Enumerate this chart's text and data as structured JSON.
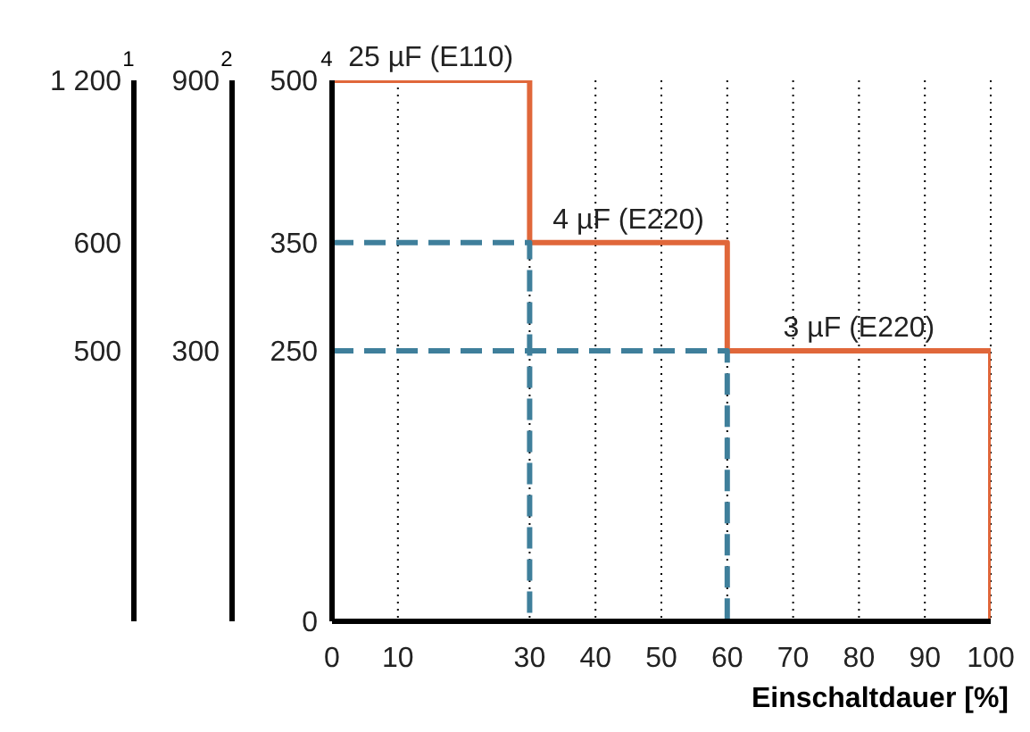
{
  "chart_data": {
    "type": "line",
    "xlabel": "Einschaltdauer [%]",
    "ylabel": "4",
    "xlim": [
      0,
      100
    ],
    "xticks": [
      0,
      10,
      30,
      40,
      50,
      60,
      70,
      80,
      90,
      100
    ],
    "ylim": [
      0,
      500
    ],
    "yticks": [
      0,
      250,
      350,
      500
    ],
    "grid": "x",
    "marker": "none",
    "series": [
      {
        "color": "#e0673a",
        "line_style": "solid",
        "x": [
          0,
          30,
          30,
          60,
          60,
          100,
          100
        ],
        "values": [
          500,
          500,
          350,
          350,
          250,
          250,
          0
        ]
      },
      {
        "color": "#3f7f9b",
        "line_style": "dashed",
        "x": [
          0,
          30,
          30
        ],
        "values": [
          350,
          350,
          0
        ]
      },
      {
        "color": "#3f7f9b",
        "line_style": "dashed",
        "x": [
          0,
          60,
          60
        ],
        "values": [
          250,
          250,
          0
        ]
      }
    ],
    "annotations": [
      {
        "text": "25 µF (E110)",
        "x": 15,
        "y": 500
      },
      {
        "text": "4 µF (E220)",
        "x": 45,
        "y": 350
      },
      {
        "text": "3 µF (E220)",
        "x": 80,
        "y": 250
      },
      "1",
      "2",
      "1 200",
      "600",
      "500",
      "900",
      "300"
    ]
  }
}
